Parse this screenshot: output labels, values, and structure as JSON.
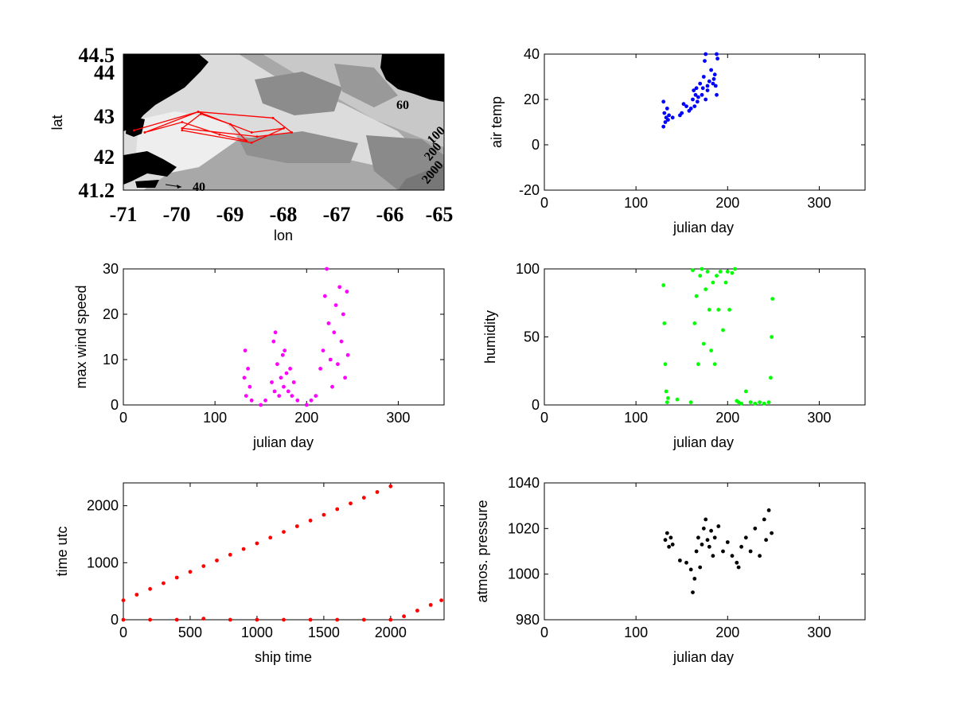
{
  "figure": {
    "background": "#ffffff",
    "panels": {
      "map": {
        "xlabel": "lon",
        "ylabel": "lat",
        "xticks": [
          "-71",
          "-70",
          "-69",
          "-68",
          "-67",
          "-66",
          "-65"
        ],
        "yticks": [
          "44.5",
          "44",
          "43",
          "42",
          "41.2"
        ],
        "contour_labels": [
          "60",
          "100",
          "200",
          "2000",
          "40"
        ],
        "track_color": "#ff0000"
      }
    }
  },
  "chart_data": [
    {
      "id": "track-map",
      "type": "line",
      "xlabel": "lon",
      "ylabel": "lat",
      "xlim": [
        -71,
        -65
      ],
      "ylim": [
        41.2,
        44.5
      ],
      "x_ticks": [
        -71,
        -70,
        -69,
        -68,
        -67,
        -66,
        -65
      ],
      "y_ticks": [
        44.5,
        44,
        43,
        42,
        41.2
      ],
      "color": "#ff0000",
      "x": [
        -70.8,
        -69.6,
        -68.2,
        -67.85,
        -68.5,
        -69.9,
        -69.55,
        -69.0,
        -68.7,
        -69.2,
        -69.9,
        -70.6,
        -69.6,
        -68.6,
        -68.0,
        -68.6,
        -69.9
      ],
      "y": [
        42.65,
        43.1,
        42.95,
        42.6,
        42.5,
        42.7,
        43.05,
        42.8,
        42.4,
        42.55,
        42.85,
        42.6,
        43.1,
        42.6,
        42.7,
        42.35,
        42.65
      ]
    },
    {
      "id": "air-temp",
      "type": "scatter",
      "xlabel": "julian day",
      "ylabel": "air temp",
      "xlim": [
        0,
        350
      ],
      "ylim": [
        -20,
        40
      ],
      "x_ticks": [
        0,
        100,
        200,
        300
      ],
      "y_ticks": [
        -20,
        0,
        20,
        40
      ],
      "color": "#0000ff",
      "x": [
        130,
        130,
        131,
        132,
        133,
        134,
        135,
        136,
        140,
        148,
        150,
        152,
        155,
        158,
        160,
        162,
        163,
        164,
        165,
        166,
        167,
        168,
        170,
        172,
        173,
        174,
        175,
        176,
        178,
        180,
        182,
        184,
        185,
        186,
        187,
        188,
        189,
        176,
        178,
        188
      ],
      "y": [
        8,
        19,
        14,
        10,
        12,
        16,
        11,
        13,
        12,
        13,
        14,
        18,
        17,
        15,
        16,
        20,
        24,
        17,
        22,
        25,
        19,
        21,
        27,
        22,
        25,
        30,
        37,
        40,
        26,
        28,
        33,
        27,
        29,
        31,
        26,
        40,
        38,
        20,
        24,
        22
      ]
    },
    {
      "id": "max-wind-speed",
      "type": "scatter",
      "xlabel": "julian day",
      "ylabel": "max wind speed",
      "xlim": [
        0,
        350
      ],
      "ylim": [
        0,
        30
      ],
      "x_ticks": [
        0,
        100,
        200,
        300
      ],
      "y_ticks": [
        0,
        10,
        20,
        30
      ],
      "color": "#ff00ff",
      "x": [
        132,
        133,
        134,
        136,
        138,
        140,
        150,
        155,
        162,
        164,
        165,
        166,
        168,
        170,
        172,
        174,
        175,
        176,
        178,
        180,
        182,
        184,
        186,
        190,
        200,
        205,
        210,
        215,
        218,
        220,
        222,
        224,
        226,
        228,
        230,
        232,
        234,
        236,
        238,
        240,
        242,
        244,
        245
      ],
      "y": [
        6,
        12,
        2,
        8,
        4,
        1,
        0,
        1,
        5,
        14,
        3,
        16,
        9,
        2,
        6,
        11,
        4,
        12,
        7,
        3,
        8,
        2,
        5,
        1,
        0,
        1,
        2,
        8,
        12,
        24,
        30,
        18,
        10,
        4,
        16,
        22,
        9,
        26,
        14,
        20,
        6,
        25,
        11
      ]
    },
    {
      "id": "humidity",
      "type": "scatter",
      "xlabel": "julian day",
      "ylabel": "humidity",
      "xlim": [
        0,
        350
      ],
      "ylim": [
        0,
        100
      ],
      "x_ticks": [
        0,
        100,
        200,
        300
      ],
      "y_ticks": [
        0,
        50,
        100
      ],
      "color": "#00ff00",
      "x": [
        130,
        131,
        132,
        133,
        134,
        135,
        145,
        160,
        162,
        164,
        166,
        168,
        170,
        172,
        174,
        176,
        178,
        180,
        182,
        184,
        186,
        188,
        190,
        192,
        195,
        198,
        200,
        202,
        205,
        208,
        210,
        212,
        215,
        220,
        225,
        230,
        235,
        240,
        245,
        247,
        248,
        249
      ],
      "y": [
        88,
        60,
        30,
        10,
        2,
        5,
        4,
        2,
        99,
        60,
        80,
        30,
        95,
        100,
        45,
        85,
        98,
        70,
        40,
        90,
        30,
        95,
        70,
        98,
        55,
        90,
        98,
        70,
        97,
        100,
        3,
        2,
        1,
        10,
        2,
        1,
        2,
        1,
        2,
        20,
        50,
        78
      ]
    },
    {
      "id": "time-utc",
      "type": "scatter",
      "xlabel": "ship time",
      "ylabel": "time utc",
      "xlim": [
        0,
        2400
      ],
      "ylim": [
        0,
        2400
      ],
      "x_ticks": [
        0,
        500,
        1000,
        1500,
        2000
      ],
      "y_ticks": [
        0,
        1000,
        2000
      ],
      "color": "#ff0000",
      "x": [
        0,
        100,
        200,
        300,
        400,
        500,
        600,
        700,
        800,
        900,
        1000,
        1100,
        1200,
        1300,
        1400,
        1500,
        1600,
        1700,
        1800,
        1900,
        2000,
        0,
        200,
        400,
        600,
        800,
        1000,
        1200,
        1400,
        1600,
        1800,
        2000,
        2100,
        2200,
        2300,
        2380
      ],
      "y": [
        340,
        440,
        540,
        640,
        740,
        840,
        940,
        1040,
        1140,
        1240,
        1340,
        1440,
        1540,
        1640,
        1740,
        1840,
        1940,
        2040,
        2140,
        2240,
        2340,
        0,
        0,
        0,
        20,
        0,
        0,
        0,
        0,
        0,
        0,
        0,
        60,
        160,
        260,
        340
      ]
    },
    {
      "id": "atmos-pressure",
      "type": "scatter",
      "xlabel": "julian day",
      "ylabel": "atmos. pressure",
      "xlim": [
        0,
        350
      ],
      "ylim": [
        980,
        1040
      ],
      "x_ticks": [
        0,
        100,
        200,
        300
      ],
      "y_ticks": [
        980,
        1000,
        1020,
        1040
      ],
      "color": "#000000",
      "x": [
        132,
        134,
        136,
        138,
        140,
        148,
        155,
        160,
        162,
        164,
        166,
        168,
        170,
        172,
        174,
        176,
        178,
        180,
        182,
        184,
        186,
        190,
        195,
        200,
        205,
        210,
        212,
        215,
        220,
        225,
        230,
        235,
        240,
        242,
        245,
        248
      ],
      "y": [
        1015,
        1018,
        1012,
        1016,
        1013,
        1006,
        1005,
        1002,
        992,
        998,
        1010,
        1016,
        1003,
        1013,
        1020,
        1024,
        1015,
        1012,
        1019,
        1008,
        1016,
        1021,
        1010,
        1014,
        1008,
        1005,
        1003,
        1012,
        1016,
        1010,
        1020,
        1008,
        1024,
        1015,
        1028,
        1018
      ]
    }
  ]
}
